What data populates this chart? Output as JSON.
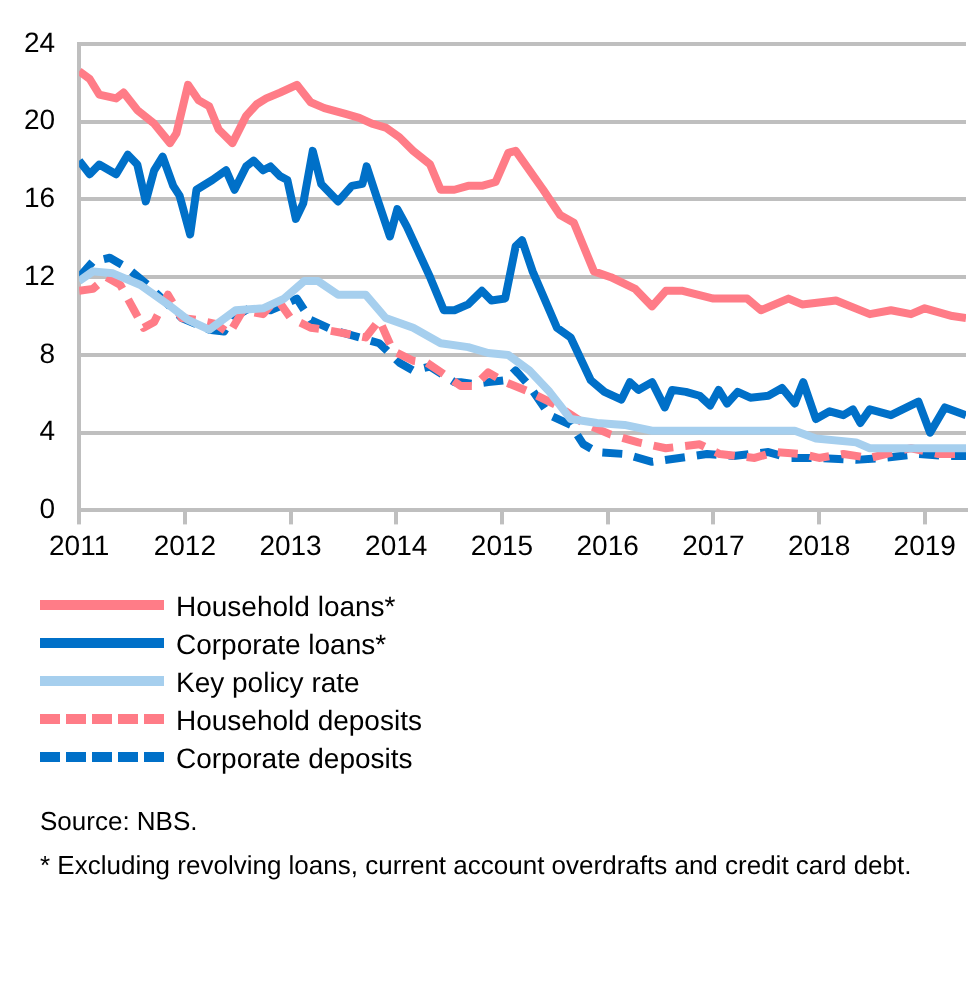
{
  "chart_data": {
    "type": "line",
    "xlim": [
      2011,
      2019.39
    ],
    "xticks": [
      2011,
      2012,
      2013,
      2014,
      2015,
      2016,
      2017,
      2018,
      2019
    ],
    "ylim": [
      0,
      24
    ],
    "yticks": [
      0,
      4,
      8,
      12,
      16,
      20,
      24
    ],
    "grid": "y",
    "legend": "bottom",
    "marker": "none",
    "series": [
      {
        "name": "Household loans*",
        "color": "#ff7c87",
        "line_style": "solid",
        "x": [
          2011.0,
          2011.1,
          2011.19,
          2011.35,
          2011.42,
          2011.55,
          2011.71,
          2011.86,
          2011.92,
          2012.03,
          2012.13,
          2012.23,
          2012.32,
          2012.45,
          2012.58,
          2012.68,
          2012.77,
          2012.9,
          2013.06,
          2013.19,
          2013.32,
          2013.52,
          2013.65,
          2013.77,
          2013.9,
          2014.03,
          2014.16,
          2014.32,
          2014.42,
          2014.55,
          2014.68,
          2014.81,
          2014.94,
          2015.06,
          2015.13,
          2015.39,
          2015.55,
          2015.68,
          2015.87,
          2016.03,
          2016.26,
          2016.42,
          2016.55,
          2016.71,
          2017.0,
          2017.19,
          2017.32,
          2017.45,
          2017.71,
          2017.84,
          2018.16,
          2018.48,
          2018.68,
          2018.87,
          2019.0,
          2019.26,
          2019.39
        ],
        "values": [
          22.6,
          22.2,
          21.4,
          21.2,
          21.5,
          20.6,
          19.9,
          18.9,
          19.4,
          21.9,
          21.1,
          20.8,
          19.6,
          18.9,
          20.3,
          20.9,
          21.2,
          21.5,
          21.9,
          21.0,
          20.7,
          20.4,
          20.2,
          19.9,
          19.7,
          19.2,
          18.5,
          17.8,
          16.5,
          16.5,
          16.7,
          16.7,
          16.9,
          18.4,
          18.5,
          16.5,
          15.2,
          14.8,
          12.3,
          12.0,
          11.4,
          10.5,
          11.3,
          11.3,
          10.9,
          10.9,
          10.9,
          10.3,
          10.9,
          10.6,
          10.8,
          10.1,
          10.3,
          10.1,
          10.4,
          10.0,
          9.9
        ]
      },
      {
        "name": "Corporate loans*",
        "color": "#0070c8",
        "line_style": "solid",
        "x": [
          2011.0,
          2011.1,
          2011.19,
          2011.35,
          2011.46,
          2011.55,
          2011.63,
          2011.71,
          2011.79,
          2011.89,
          2011.95,
          2012.05,
          2012.11,
          2012.26,
          2012.39,
          2012.47,
          2012.58,
          2012.65,
          2012.74,
          2012.81,
          2012.9,
          2012.97,
          2013.05,
          2013.12,
          2013.21,
          2013.29,
          2013.45,
          2013.58,
          2013.68,
          2013.72,
          2013.81,
          2013.94,
          2014.01,
          2014.1,
          2014.21,
          2014.32,
          2014.45,
          2014.55,
          2014.68,
          2014.81,
          2014.9,
          2015.03,
          2015.13,
          2015.19,
          2015.29,
          2015.52,
          2015.65,
          2015.84,
          2015.97,
          2016.13,
          2016.21,
          2016.29,
          2016.42,
          2016.54,
          2016.61,
          2016.74,
          2016.87,
          2016.97,
          2017.05,
          2017.13,
          2017.23,
          2017.35,
          2017.52,
          2017.65,
          2017.77,
          2017.85,
          2017.97,
          2018.1,
          2018.23,
          2018.32,
          2018.39,
          2018.48,
          2018.68,
          2018.94,
          2019.05,
          2019.19,
          2019.39
        ],
        "values": [
          18.0,
          17.3,
          17.8,
          17.3,
          18.3,
          17.8,
          15.9,
          17.5,
          18.2,
          16.7,
          16.2,
          14.2,
          16.5,
          17.0,
          17.5,
          16.5,
          17.7,
          18.0,
          17.5,
          17.7,
          17.2,
          17.0,
          15.0,
          15.8,
          18.5,
          16.8,
          15.9,
          16.7,
          16.8,
          17.7,
          16.2,
          14.1,
          15.5,
          14.6,
          13.3,
          12.0,
          10.3,
          10.3,
          10.6,
          11.3,
          10.8,
          10.9,
          13.6,
          13.9,
          12.3,
          9.4,
          8.9,
          6.7,
          6.1,
          5.7,
          6.6,
          6.2,
          6.6,
          5.3,
          6.2,
          6.1,
          5.9,
          5.4,
          6.2,
          5.5,
          6.1,
          5.8,
          5.9,
          6.3,
          5.5,
          6.6,
          4.7,
          5.1,
          4.9,
          5.2,
          4.5,
          5.2,
          4.9,
          5.6,
          4.0,
          5.3,
          4.9
        ]
      },
      {
        "name": "Key policy rate",
        "color": "#a6cfee",
        "line_style": "solid",
        "x": [
          2011.0,
          2011.13,
          2011.32,
          2011.58,
          2011.84,
          2012.03,
          2012.23,
          2012.48,
          2012.74,
          2012.94,
          2013.13,
          2013.26,
          2013.45,
          2013.71,
          2013.9,
          2014.16,
          2014.42,
          2014.68,
          2014.87,
          2015.06,
          2015.26,
          2015.45,
          2015.65,
          2015.9,
          2016.16,
          2016.42,
          2016.68,
          2017.19,
          2017.77,
          2017.97,
          2018.35,
          2018.48,
          2018.81,
          2019.39
        ],
        "values": [
          11.8,
          12.3,
          12.2,
          11.6,
          10.6,
          9.8,
          9.3,
          10.3,
          10.4,
          10.9,
          11.8,
          11.8,
          11.1,
          11.1,
          9.9,
          9.4,
          8.6,
          8.4,
          8.1,
          8.0,
          7.2,
          6.1,
          4.7,
          4.5,
          4.4,
          4.1,
          4.1,
          4.1,
          4.1,
          3.7,
          3.5,
          3.2,
          3.2,
          3.2
        ]
      },
      {
        "name": "Household deposits",
        "color": "#ff7c87",
        "line_style": "dashed",
        "x": [
          2011.0,
          2011.13,
          2011.26,
          2011.39,
          2011.52,
          2011.61,
          2011.71,
          2011.84,
          2011.97,
          2012.11,
          2012.29,
          2012.42,
          2012.55,
          2012.74,
          2012.87,
          2013.0,
          2013.19,
          2013.32,
          2013.52,
          2013.71,
          2013.84,
          2013.97,
          2014.16,
          2014.29,
          2014.48,
          2014.61,
          2014.74,
          2014.87,
          2015.03,
          2015.26,
          2015.52,
          2015.77,
          2016.03,
          2016.29,
          2016.55,
          2016.87,
          2017.06,
          2017.39,
          2017.58,
          2017.84,
          2018.0,
          2018.23,
          2018.48,
          2018.87,
          2019.13,
          2019.39
        ],
        "values": [
          11.3,
          11.4,
          12.0,
          11.6,
          10.3,
          9.4,
          9.7,
          11.1,
          9.9,
          9.8,
          9.6,
          9.1,
          10.3,
          10.1,
          10.9,
          9.9,
          9.4,
          9.3,
          9.1,
          8.9,
          9.8,
          8.2,
          7.7,
          7.6,
          6.9,
          6.4,
          6.4,
          7.1,
          6.6,
          6.1,
          5.4,
          4.5,
          3.9,
          3.5,
          3.2,
          3.4,
          2.9,
          2.7,
          3.0,
          2.9,
          2.7,
          2.9,
          2.7,
          3.2,
          2.9,
          2.9
        ]
      },
      {
        "name": "Corporate deposits",
        "color": "#0070c8",
        "line_style": "dashed",
        "x": [
          2011.0,
          2011.13,
          2011.29,
          2011.45,
          2011.65,
          2011.84,
          2011.97,
          2012.23,
          2012.37,
          2012.45,
          2012.61,
          2012.81,
          2012.94,
          2013.06,
          2013.19,
          2013.39,
          2013.65,
          2013.84,
          2014.03,
          2014.16,
          2014.32,
          2014.55,
          2014.61,
          2014.74,
          2014.87,
          2015.03,
          2015.13,
          2015.26,
          2015.45,
          2015.65,
          2015.77,
          2015.9,
          2016.16,
          2016.42,
          2016.68,
          2016.94,
          2017.19,
          2017.52,
          2017.71,
          2017.97,
          2018.35,
          2018.61,
          2018.94,
          2019.19,
          2019.39
        ],
        "values": [
          12.0,
          12.8,
          13.0,
          12.5,
          11.6,
          10.6,
          9.9,
          9.3,
          9.2,
          9.9,
          10.4,
          10.3,
          10.6,
          10.9,
          9.8,
          9.3,
          8.9,
          8.6,
          7.6,
          7.2,
          7.4,
          6.6,
          6.6,
          6.5,
          6.6,
          6.7,
          7.2,
          6.4,
          4.9,
          4.4,
          3.4,
          3.0,
          2.9,
          2.5,
          2.7,
          2.9,
          2.8,
          3.0,
          2.7,
          2.7,
          2.6,
          2.7,
          2.9,
          2.8,
          2.8
        ]
      }
    ],
    "annotations": [
      "Source: NBS.",
      "* Excluding revolving loans, current account overdrafts and credit card debt."
    ]
  }
}
